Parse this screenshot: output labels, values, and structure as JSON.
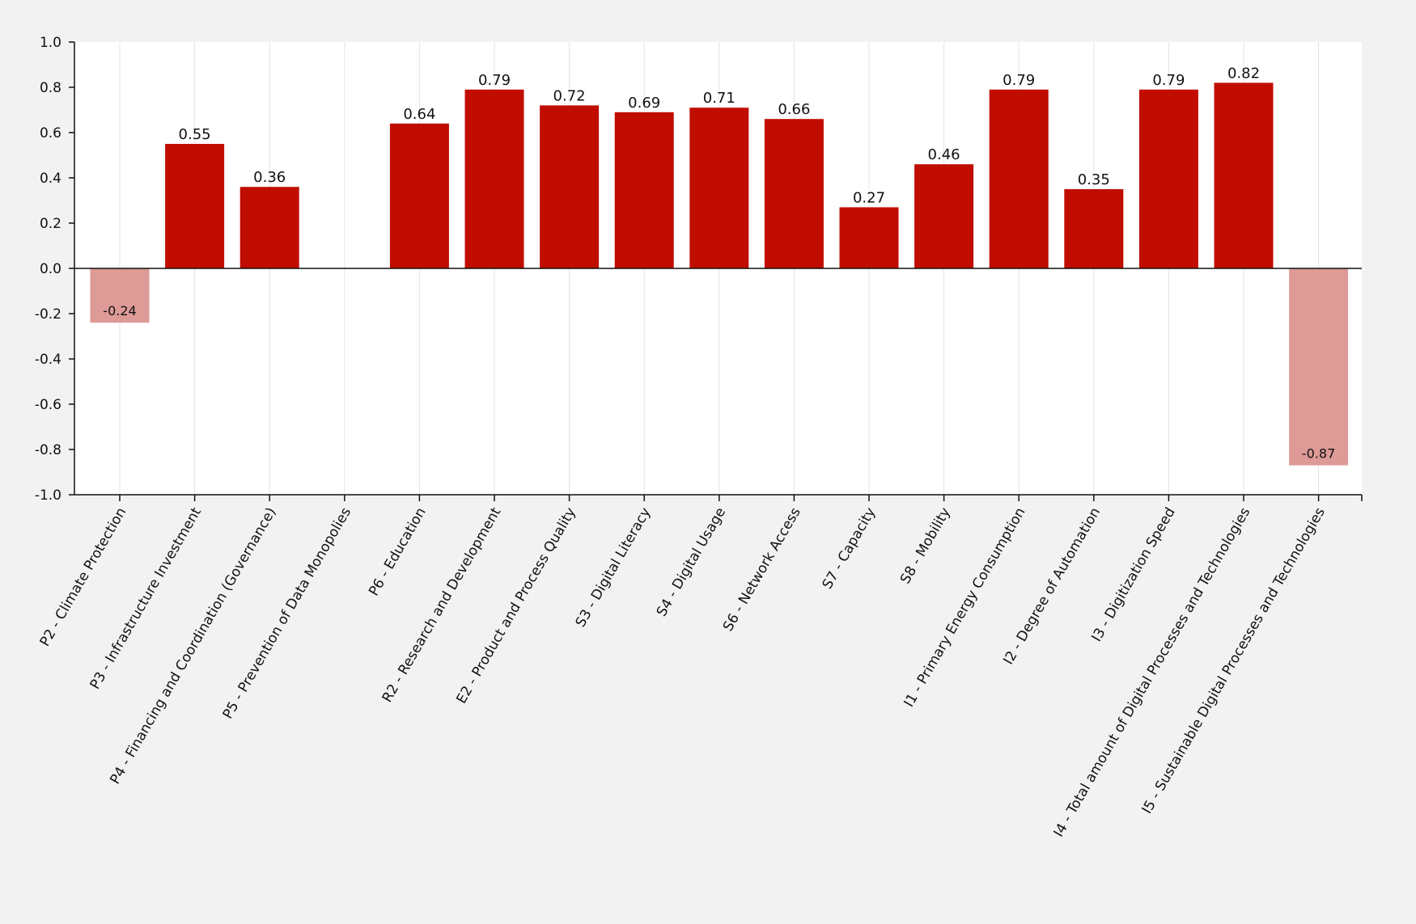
{
  "chart_data": {
    "type": "bar",
    "title": "",
    "xlabel": "",
    "ylabel": "",
    "ylim": [
      -1.0,
      1.0
    ],
    "yticks": [
      1.0,
      0.8,
      0.6,
      0.4,
      0.2,
      0.0,
      -0.2,
      -0.4,
      -0.6,
      -0.8,
      -1.0
    ],
    "ytick_labels": [
      "1.0",
      "0.8",
      "0.6",
      "0.4",
      "0.2",
      "0.0",
      "-0.2",
      "-0.4",
      "-0.6",
      "-0.8",
      "-1.0"
    ],
    "grid": "vertical",
    "legend": "none",
    "categories": [
      "P2 - Climate Protection",
      "P3 - Infrastructure Investment",
      "P4 - Financing and Coordination (Governance)",
      "P5 - Prevention of Data Monopolies",
      "P6 - Education",
      "R2 - Research and Development",
      "E2 - Product and Process Quality",
      "S3 - Digital Literacy",
      "S4 - Digital Usage",
      "S6 - Network Access",
      "S7 - Capacity",
      "S8 - Mobility",
      "I1 - Primary Energy Consumption",
      "I2 - Degree of Automation",
      "I3 - Digitization Speed",
      "I4 - Total amount of Digital Processes and Technologies",
      "I5 - Sustainable Digital Processes and Technologies"
    ],
    "values": [
      -0.24,
      0.55,
      0.36,
      null,
      0.64,
      0.79,
      0.72,
      0.69,
      0.71,
      0.66,
      0.27,
      0.46,
      0.79,
      0.35,
      0.79,
      0.82,
      -0.87
    ],
    "value_labels": [
      "-0.24",
      "0.55",
      "0.36",
      "",
      "0.64",
      "0.79",
      "0.72",
      "0.69",
      "0.71",
      "0.66",
      "0.27",
      "0.46",
      "0.79",
      "0.35",
      "0.79",
      "0.82",
      "-0.87"
    ],
    "colors": {
      "positive_bar": "#c00d00",
      "negative_bar": "#dd9a96",
      "plot_background": "#ffffff",
      "page_background": "#f2f2f2",
      "axis": "#111111",
      "grid": "#e4e4e4"
    }
  }
}
